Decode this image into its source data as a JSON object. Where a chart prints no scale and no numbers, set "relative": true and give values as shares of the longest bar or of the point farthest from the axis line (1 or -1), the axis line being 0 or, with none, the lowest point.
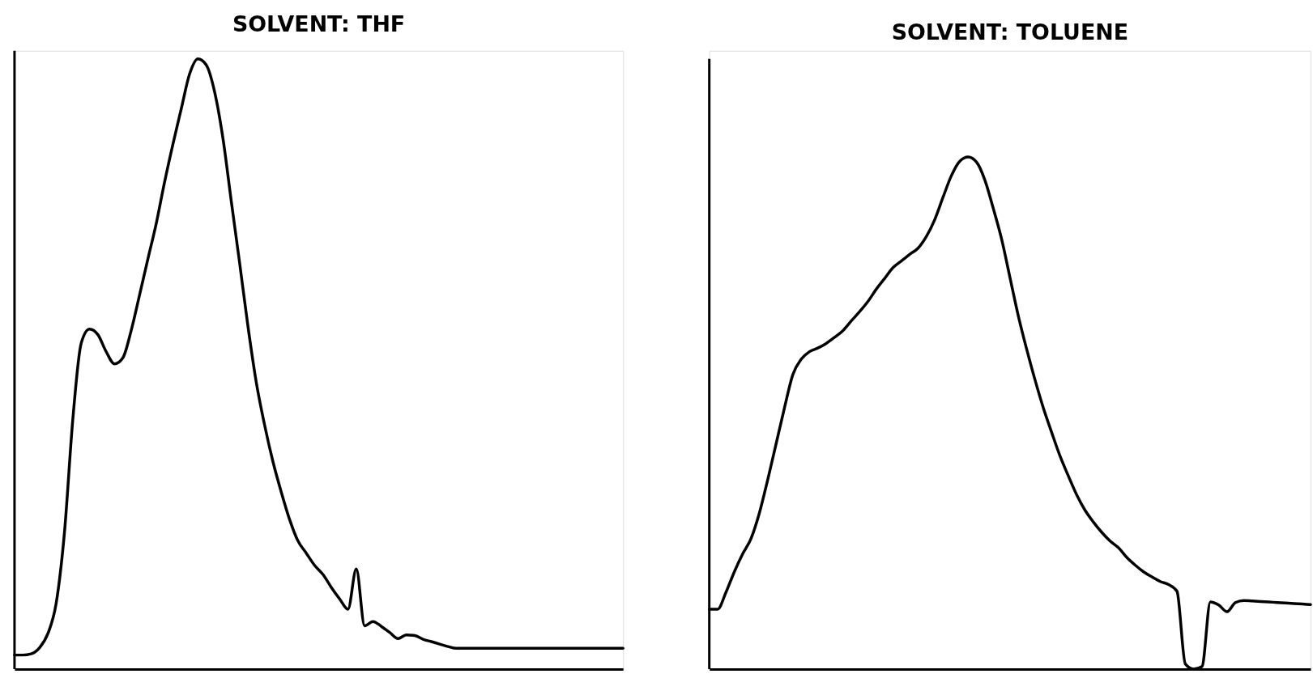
{
  "chart_data": [
    {
      "type": "line",
      "title": "SOLVENT: THF",
      "relative": true,
      "line_style": "solid",
      "color": "#000000",
      "categories": [
        null,
        null,
        null,
        null,
        null,
        null,
        null,
        null,
        null,
        null,
        null,
        null,
        null,
        null,
        null,
        null,
        null,
        null,
        null,
        null,
        null,
        null,
        null,
        null,
        null,
        null,
        null,
        null,
        null,
        null,
        null,
        null,
        null,
        null,
        null,
        null,
        null,
        null,
        null,
        null,
        null,
        null,
        null,
        null,
        null,
        null,
        null,
        null,
        null,
        null,
        null,
        null,
        null,
        null,
        null,
        null,
        null,
        null,
        null,
        null,
        null,
        null,
        null,
        null,
        null,
        null,
        null,
        null,
        null,
        null,
        null,
        null,
        null,
        null
      ],
      "values": [
        0.023,
        0.023,
        0.025,
        0.035,
        0.058,
        0.108,
        0.225,
        0.41,
        0.534,
        0.557,
        0.548,
        0.52,
        0.5,
        0.51,
        0.555,
        0.613,
        0.672,
        0.73,
        0.798,
        0.86,
        0.918,
        0.975,
        1.0,
        0.99,
        0.946,
        0.87,
        0.767,
        0.666,
        0.562,
        0.47,
        0.4,
        0.34,
        0.29,
        0.245,
        0.21,
        0.19,
        0.17,
        0.155,
        0.134,
        0.115,
        0.098,
        0.164,
        0.071,
        0.078,
        0.07,
        0.06,
        0.05,
        0.056,
        0.055,
        0.049,
        0.045,
        0.041,
        0.037,
        0.034,
        0.034,
        0.034,
        0.034,
        0.034,
        0.034,
        0.034,
        0.034,
        0.034,
        0.034,
        0.034,
        0.034,
        0.034,
        0.034,
        0.034,
        0.034,
        0.034,
        0.034,
        0.034,
        0.034,
        0.034
      ]
    },
    {
      "type": "line",
      "title": "SOLVENT: TOLUENE",
      "relative": true,
      "line_style": "solid",
      "color": "#000000",
      "categories": [
        null,
        null,
        null,
        null,
        null,
        null,
        null,
        null,
        null,
        null,
        null,
        null,
        null,
        null,
        null,
        null,
        null,
        null,
        null,
        null,
        null,
        null,
        null,
        null,
        null,
        null,
        null,
        null,
        null,
        null,
        null,
        null,
        null,
        null,
        null,
        null,
        null,
        null,
        null,
        null,
        null,
        null,
        null,
        null,
        null,
        null,
        null,
        null,
        null,
        null,
        null,
        null,
        null,
        null,
        null,
        null,
        null,
        null,
        null,
        null,
        null,
        null,
        null,
        null,
        null,
        null,
        null,
        null,
        null,
        null,
        null,
        null,
        null
      ],
      "values": [
        0.117,
        0.117,
        0.15,
        0.19,
        0.225,
        0.255,
        0.305,
        0.37,
        0.44,
        0.51,
        0.575,
        0.605,
        0.62,
        0.627,
        0.636,
        0.648,
        0.661,
        0.68,
        0.698,
        0.718,
        0.742,
        0.763,
        0.784,
        0.797,
        0.81,
        0.822,
        0.845,
        0.878,
        0.922,
        0.964,
        0.992,
        1.0,
        0.99,
        0.955,
        0.9,
        0.84,
        0.765,
        0.69,
        0.625,
        0.565,
        0.51,
        0.462,
        0.416,
        0.377,
        0.34,
        0.31,
        0.287,
        0.267,
        0.25,
        0.237,
        0.218,
        0.203,
        0.19,
        0.18,
        0.171,
        0.165,
        0.152,
        0.01,
        0,
        0.005,
        0.131,
        0.125,
        0.112,
        0.13,
        0.134,
        0.133,
        0.132,
        0.131,
        0.13,
        0.129,
        0.128,
        0.127,
        0.126
      ]
    }
  ]
}
